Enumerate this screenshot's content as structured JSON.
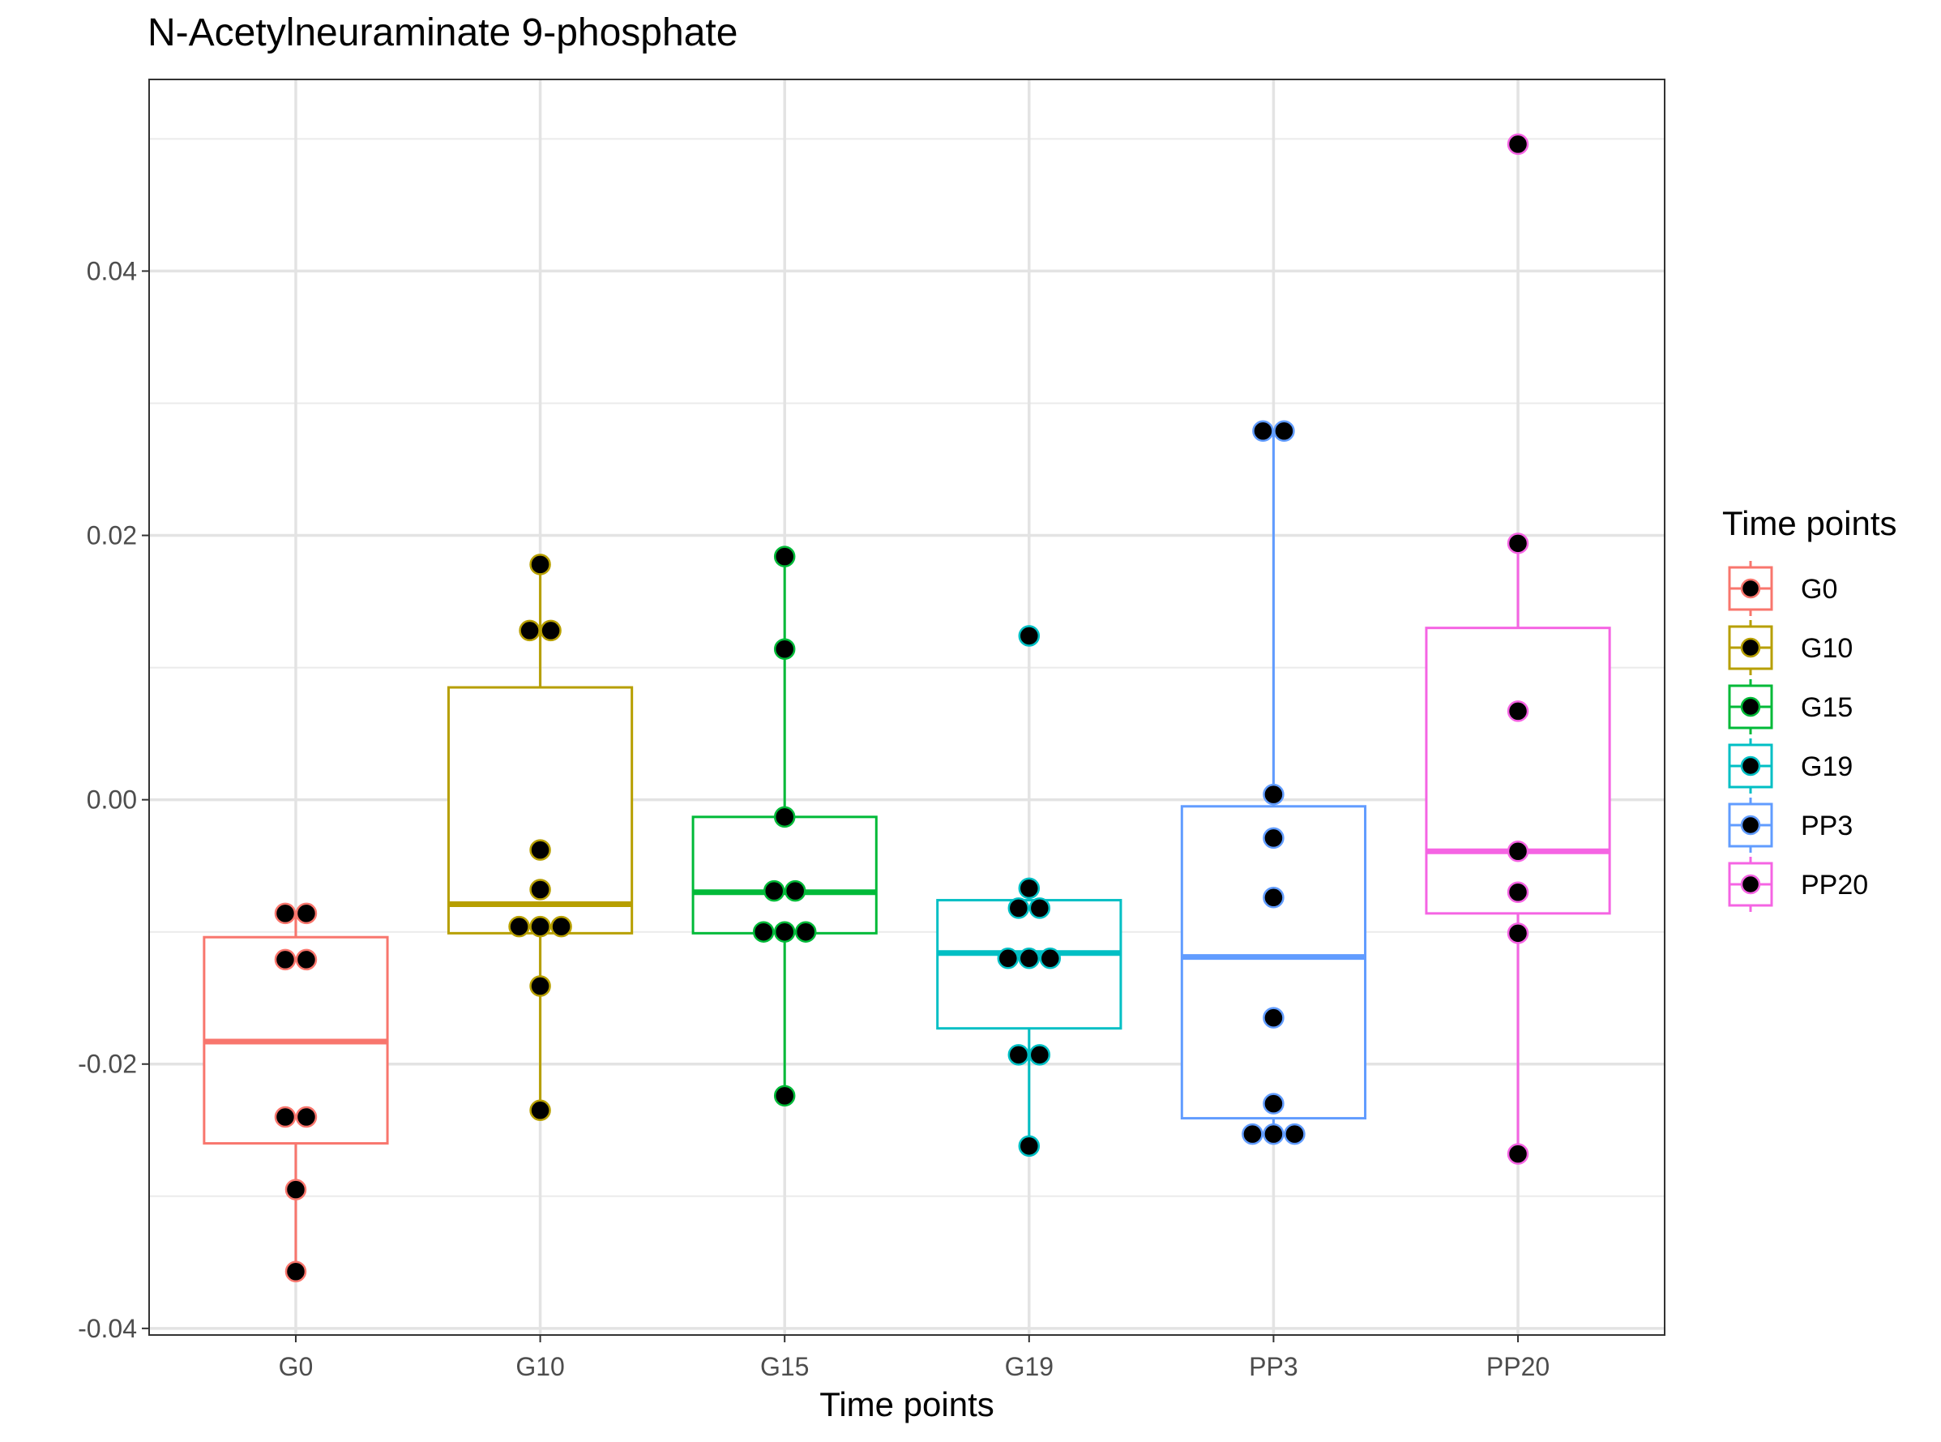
{
  "chart_data": {
    "type": "box",
    "title": "N-Acetylneuraminate 9-phosphate",
    "xlabel": "Time points",
    "ylabel": "",
    "ylim": [
      -0.0405,
      0.0545
    ],
    "yticks": [
      -0.04,
      -0.02,
      0.0,
      0.02,
      0.04
    ],
    "ytick_labels": [
      "-0.04",
      "-0.02",
      "0.00",
      "0.02",
      "0.04"
    ],
    "grid": true,
    "legend": {
      "title": "Time points",
      "placement": "right"
    },
    "point_color": "#000000",
    "categories": [
      {
        "name": "G0",
        "color": "#F8766D",
        "box": {
          "q1": -0.026,
          "median": -0.0183,
          "q3": -0.0104,
          "lower": -0.0357,
          "upper": -0.0086
        },
        "points": [
          -0.0086,
          -0.0086,
          -0.0121,
          -0.0121,
          -0.024,
          -0.024,
          -0.0295,
          -0.0357
        ]
      },
      {
        "name": "G10",
        "color": "#B79F00",
        "box": {
          "q1": -0.0101,
          "median": -0.0079,
          "q3": 0.0085,
          "lower": -0.0235,
          "upper": 0.0178
        },
        "points": [
          0.0178,
          0.0128,
          0.0128,
          -0.0038,
          -0.0068,
          -0.0096,
          -0.0096,
          -0.0096,
          -0.0141,
          -0.0235
        ]
      },
      {
        "name": "G15",
        "color": "#00BA38",
        "box": {
          "q1": -0.0101,
          "median": -0.007,
          "q3": -0.0013,
          "lower": -0.0224,
          "upper": 0.0184
        },
        "points": [
          0.0184,
          0.0114,
          -0.0013,
          -0.0069,
          -0.0069,
          -0.01,
          -0.01,
          -0.01,
          -0.0224
        ]
      },
      {
        "name": "G19",
        "color": "#00BFC4",
        "box": {
          "q1": -0.0173,
          "median": -0.0116,
          "q3": -0.0076,
          "lower": -0.0262,
          "upper": -0.0067
        },
        "points": [
          0.0124,
          -0.0067,
          -0.0082,
          -0.0082,
          -0.012,
          -0.012,
          -0.012,
          -0.0193,
          -0.0193,
          -0.0262
        ]
      },
      {
        "name": "PP3",
        "color": "#619CFF",
        "box": {
          "q1": -0.0241,
          "median": -0.0119,
          "q3": -0.0005,
          "lower": -0.0253,
          "upper": 0.0279
        },
        "points": [
          0.0279,
          0.0279,
          0.0004,
          -0.0029,
          -0.0074,
          -0.0165,
          -0.023,
          -0.0253,
          -0.0253,
          -0.0253
        ]
      },
      {
        "name": "PP20",
        "color": "#F564E3",
        "box": {
          "q1": -0.0086,
          "median": -0.0039,
          "q3": 0.013,
          "lower": -0.0268,
          "upper": 0.0194
        },
        "points": [
          0.0496,
          0.0194,
          0.0067,
          -0.0039,
          -0.007,
          -0.0101,
          -0.0268
        ]
      }
    ]
  }
}
